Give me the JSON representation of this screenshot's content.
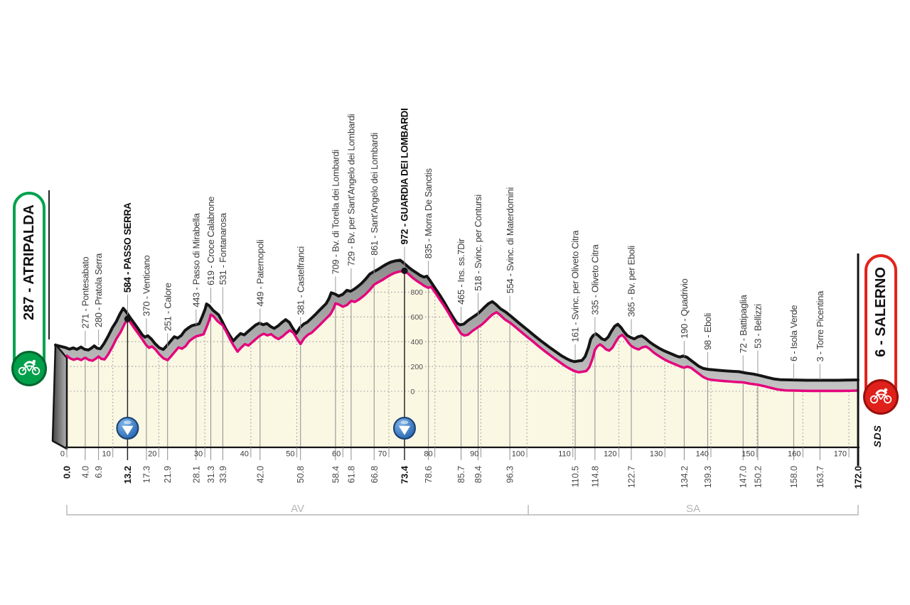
{
  "colors": {
    "pink": "#E4007C",
    "profile_outline": "#141414",
    "area_fill": "#FAF7E3",
    "band_dark": "#868686",
    "band_light": "#CACACA",
    "grid": "#9B9B9B",
    "waypoint_line": "#8D8D8D",
    "label_text": "#3B3B3B",
    "label_text_bold": "#0D0D0D",
    "ruler_text": "#3A3A3A",
    "bracket": "#B5B5B5",
    "start_green": "#00A24D",
    "start_circle": "#009F4A",
    "start_circle_ring": "#00662F",
    "finish_red": "#E3231B",
    "finish_circle": "#E0201B",
    "finish_circle_ring": "#99100B",
    "balloon_blue": "#2F6FBE",
    "balloon_ring": "#17406F"
  },
  "start_badge": {
    "label": "287 - ATRIPALDA"
  },
  "finish_badge": {
    "label": "6 - SALERNO"
  },
  "logo": "SDS",
  "chart_data": {
    "type": "area",
    "x_unit": "km",
    "y_unit": "m",
    "xlim": [
      0,
      172
    ],
    "ruler_ticks_km": [
      0,
      10,
      20,
      30,
      40,
      50,
      60,
      70,
      80,
      90,
      100,
      110,
      120,
      130,
      140,
      150,
      160,
      170
    ],
    "y_gridlines_m": [
      0,
      200,
      400,
      600,
      800
    ],
    "start": {
      "km": 0.0,
      "elevation_m": 287,
      "name": "ATRIPALDA",
      "label": "287 - ATRIPALDA"
    },
    "finish": {
      "km": 172.0,
      "elevation_m": 6,
      "name": "SALERNO",
      "label": "6 - SALERNO"
    },
    "provinces": [
      {
        "code": "AV",
        "from_km": 0,
        "to_km": 100.3
      },
      {
        "code": "SA",
        "from_km": 100.3,
        "to_km": 172
      }
    ],
    "waypoints": [
      {
        "km": 4.0,
        "elevation_m": 271,
        "name": "Pontesabato"
      },
      {
        "km": 6.9,
        "elevation_m": 280,
        "name": "Pratola Serra"
      },
      {
        "km": 13.2,
        "elevation_m": 584,
        "name": "PASSO SERRA",
        "bold": true,
        "balloon": true
      },
      {
        "km": 17.3,
        "elevation_m": 370,
        "name": "Venticano"
      },
      {
        "km": 21.9,
        "elevation_m": 251,
        "name": "Calore"
      },
      {
        "km": 28.1,
        "elevation_m": 443,
        "name": "Passo di Mirabella"
      },
      {
        "km": 31.3,
        "elevation_m": 619,
        "name": "Croce Calabrone"
      },
      {
        "km": 33.9,
        "elevation_m": 531,
        "name": "Fontanarosa",
        "lead": 38
      },
      {
        "km": 42.0,
        "elevation_m": 449,
        "name": "Paternopoli"
      },
      {
        "km": 50.8,
        "elevation_m": 381,
        "name": "Castelfranci"
      },
      {
        "km": 58.4,
        "elevation_m": 709,
        "name": "Bv. di Torella dei Lombardi"
      },
      {
        "km": 61.8,
        "elevation_m": 729,
        "name": "Bv. per Sant'Angelo dei Lombardi",
        "lead": 30
      },
      {
        "km": 66.8,
        "elevation_m": 861,
        "name": "Sant'Angelo dei Lombardi"
      },
      {
        "km": 73.4,
        "elevation_m": 972,
        "name": "GUARDIA DEI LOMBARDI",
        "bold": true,
        "balloon": true
      },
      {
        "km": 78.6,
        "elevation_m": 835,
        "name": "Morra De Sanctis"
      },
      {
        "km": 85.7,
        "elevation_m": 465,
        "name": "Ins. ss.7Dir"
      },
      {
        "km": 89.4,
        "elevation_m": 518,
        "name": "Svinc. per Contursi",
        "lead": 32
      },
      {
        "km": 96.3,
        "elevation_m": 554,
        "name": "Svinc. di Materdomini"
      },
      {
        "km": 110.5,
        "elevation_m": 161,
        "name": "Svinc. per Oliveto Citra"
      },
      {
        "km": 114.8,
        "elevation_m": 335,
        "name": "Oliveto Citra",
        "lead": 30
      },
      {
        "km": 122.7,
        "elevation_m": 365,
        "name": "Bv. per Eboli"
      },
      {
        "km": 134.2,
        "elevation_m": 190,
        "name": "Quadrivio"
      },
      {
        "km": 139.3,
        "elevation_m": 98,
        "name": "Eboli"
      },
      {
        "km": 147.0,
        "elevation_m": 72,
        "name": "Battipaglia"
      },
      {
        "km": 150.2,
        "elevation_m": 53,
        "name": "Bellizzi",
        "lead": 32
      },
      {
        "km": 158.0,
        "elevation_m": 6,
        "name": "Isola Verde"
      },
      {
        "km": 163.7,
        "elevation_m": 3,
        "name": "Torre Picentina"
      }
    ],
    "profile_km_m": [
      [
        0,
        287
      ],
      [
        0.7,
        266
      ],
      [
        1.5,
        254
      ],
      [
        2.3,
        264
      ],
      [
        3.1,
        252
      ],
      [
        4,
        271
      ],
      [
        4.8,
        253
      ],
      [
        5.6,
        247
      ],
      [
        6.3,
        263
      ],
      [
        6.9,
        280
      ],
      [
        7.5,
        262
      ],
      [
        8.2,
        257
      ],
      [
        9,
        298
      ],
      [
        9.9,
        358
      ],
      [
        10.8,
        425
      ],
      [
        11.7,
        478
      ],
      [
        12.5,
        540
      ],
      [
        13.2,
        584
      ],
      [
        13.9,
        552
      ],
      [
        14.7,
        508
      ],
      [
        15.6,
        462
      ],
      [
        16.4,
        420
      ],
      [
        17.3,
        370
      ],
      [
        17.9,
        351
      ],
      [
        18.5,
        362
      ],
      [
        19.3,
        336
      ],
      [
        20.1,
        298
      ],
      [
        21,
        266
      ],
      [
        21.9,
        251
      ],
      [
        22.7,
        284
      ],
      [
        23.5,
        320
      ],
      [
        24.3,
        354
      ],
      [
        25,
        343
      ],
      [
        25.8,
        364
      ],
      [
        26.6,
        404
      ],
      [
        27.4,
        427
      ],
      [
        28.1,
        443
      ],
      [
        28.9,
        451
      ],
      [
        29.7,
        459
      ],
      [
        30.4,
        520
      ],
      [
        31,
        578
      ],
      [
        31.3,
        619
      ],
      [
        31.9,
        604
      ],
      [
        32.7,
        568
      ],
      [
        33.9,
        531
      ],
      [
        34.7,
        478
      ],
      [
        35.5,
        418
      ],
      [
        36.3,
        366
      ],
      [
        37.1,
        320
      ],
      [
        37.9,
        352
      ],
      [
        38.7,
        380
      ],
      [
        39.5,
        369
      ],
      [
        40.3,
        396
      ],
      [
        41.1,
        422
      ],
      [
        42,
        449
      ],
      [
        42.8,
        464
      ],
      [
        43.6,
        451
      ],
      [
        44.4,
        461
      ],
      [
        45.2,
        437
      ],
      [
        46,
        421
      ],
      [
        46.9,
        443
      ],
      [
        47.7,
        470
      ],
      [
        48.5,
        492
      ],
      [
        49.3,
        470
      ],
      [
        50,
        425
      ],
      [
        50.8,
        381
      ],
      [
        51.6,
        428
      ],
      [
        52.4,
        456
      ],
      [
        53.2,
        472
      ],
      [
        54,
        500
      ],
      [
        54.9,
        532
      ],
      [
        55.7,
        562
      ],
      [
        56.5,
        592
      ],
      [
        57.3,
        622
      ],
      [
        57.9,
        662
      ],
      [
        58.4,
        709
      ],
      [
        59.2,
        699
      ],
      [
        60,
        682
      ],
      [
        60.9,
        696
      ],
      [
        61.8,
        729
      ],
      [
        62.6,
        721
      ],
      [
        63.4,
        738
      ],
      [
        64.2,
        760
      ],
      [
        65,
        785
      ],
      [
        65.9,
        820
      ],
      [
        66.8,
        861
      ],
      [
        67.7,
        880
      ],
      [
        68.6,
        898
      ],
      [
        69.5,
        920
      ],
      [
        70.4,
        940
      ],
      [
        71.3,
        956
      ],
      [
        72.3,
        966
      ],
      [
        73.4,
        972
      ],
      [
        74.3,
        945
      ],
      [
        75.2,
        915
      ],
      [
        76.1,
        890
      ],
      [
        77,
        868
      ],
      [
        77.8,
        848
      ],
      [
        78.6,
        835
      ],
      [
        79.2,
        843
      ],
      [
        80,
        800
      ],
      [
        81,
        745
      ],
      [
        82,
        690
      ],
      [
        83,
        630
      ],
      [
        84,
        565
      ],
      [
        85,
        505
      ],
      [
        85.7,
        465
      ],
      [
        86.4,
        450
      ],
      [
        87.2,
        457
      ],
      [
        88.2,
        487
      ],
      [
        89.4,
        518
      ],
      [
        90.2,
        538
      ],
      [
        91,
        565
      ],
      [
        91.8,
        595
      ],
      [
        92.6,
        622
      ],
      [
        93.4,
        638
      ],
      [
        94.2,
        615
      ],
      [
        95.2,
        580
      ],
      [
        96.3,
        554
      ],
      [
        97.2,
        528
      ],
      [
        98.1,
        500
      ],
      [
        99.1,
        468
      ],
      [
        100.1,
        438
      ],
      [
        101.2,
        405
      ],
      [
        102.4,
        368
      ],
      [
        103.6,
        332
      ],
      [
        104.8,
        298
      ],
      [
        106,
        265
      ],
      [
        107.2,
        233
      ],
      [
        108.4,
        202
      ],
      [
        109.5,
        178
      ],
      [
        110.5,
        161
      ],
      [
        111.3,
        153
      ],
      [
        112.1,
        158
      ],
      [
        112.9,
        163
      ],
      [
        113.6,
        195
      ],
      [
        114.3,
        265
      ],
      [
        114.8,
        335
      ],
      [
        115.3,
        362
      ],
      [
        115.9,
        378
      ],
      [
        116.5,
        362
      ],
      [
        117.2,
        338
      ],
      [
        117.9,
        328
      ],
      [
        118.6,
        352
      ],
      [
        119.3,
        398
      ],
      [
        120,
        438
      ],
      [
        120.7,
        455
      ],
      [
        121.4,
        428
      ],
      [
        122,
        395
      ],
      [
        122.7,
        365
      ],
      [
        123.5,
        348
      ],
      [
        124.3,
        337
      ],
      [
        125.1,
        354
      ],
      [
        125.9,
        361
      ],
      [
        126.7,
        341
      ],
      [
        127.6,
        312
      ],
      [
        128.6,
        286
      ],
      [
        129.6,
        263
      ],
      [
        130.7,
        241
      ],
      [
        131.8,
        224
      ],
      [
        132.9,
        207
      ],
      [
        133.6,
        196
      ],
      [
        134.2,
        190
      ],
      [
        134.9,
        199
      ],
      [
        135.7,
        189
      ],
      [
        136.5,
        166
      ],
      [
        137.4,
        141
      ],
      [
        138.3,
        116
      ],
      [
        139.3,
        98
      ],
      [
        140.3,
        91
      ],
      [
        141.4,
        87
      ],
      [
        142.6,
        83
      ],
      [
        144,
        79
      ],
      [
        145.5,
        75
      ],
      [
        147,
        72
      ],
      [
        148.6,
        61
      ],
      [
        150.2,
        53
      ],
      [
        151.6,
        41
      ],
      [
        153.1,
        27
      ],
      [
        154.6,
        14
      ],
      [
        156.2,
        7
      ],
      [
        158,
        6
      ],
      [
        160,
        4
      ],
      [
        161.8,
        3
      ],
      [
        163.7,
        3
      ],
      [
        166,
        3
      ],
      [
        168.5,
        3
      ],
      [
        170.3,
        4
      ],
      [
        172,
        6
      ]
    ]
  }
}
